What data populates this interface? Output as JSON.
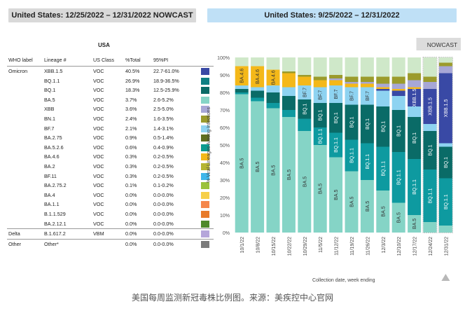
{
  "left_header": "United States: 12/25/2022 – 12/31/2022 NOWCAST",
  "right_header": "United States: 9/25/2022 – 12/31/2022",
  "table": {
    "title": "USA",
    "headers": [
      "WHO label",
      "Lineage #",
      "US Class",
      "%Total",
      "95%PI"
    ],
    "rows": [
      {
        "who": "Omicron",
        "lineage": "XBB.1.5",
        "cls": "VOC",
        "pct": "40.5%",
        "pi": "22.7-61.0%",
        "color": "#3949a5"
      },
      {
        "who": "",
        "lineage": "BQ.1.1",
        "cls": "VOC",
        "pct": "26.9%",
        "pi": "18.9-36.5%",
        "color": "#0e7f83"
      },
      {
        "who": "",
        "lineage": "BQ.1",
        "cls": "VOC",
        "pct": "18.3%",
        "pi": "12.5-25.9%",
        "color": "#0a6b67"
      },
      {
        "who": "",
        "lineage": "BA.5",
        "cls": "VOC",
        "pct": "3.7%",
        "pi": "2.6-5.2%",
        "color": "#85d4c6"
      },
      {
        "who": "",
        "lineage": "XBB",
        "cls": "VOC",
        "pct": "3.6%",
        "pi": "2.5-5.0%",
        "color": "#a7a7d6"
      },
      {
        "who": "",
        "lineage": "BN.1",
        "cls": "VOC",
        "pct": "2.4%",
        "pi": "1.6-3.5%",
        "color": "#9b9b2c"
      },
      {
        "who": "",
        "lineage": "BF.7",
        "cls": "VOC",
        "pct": "2.1%",
        "pi": "1.4-3.1%",
        "color": "#8ed3f1"
      },
      {
        "who": "",
        "lineage": "BA.2.75",
        "cls": "VOC",
        "pct": "0.9%",
        "pi": "0.5-1.4%",
        "color": "#5f6e1f"
      },
      {
        "who": "",
        "lineage": "BA.5.2.6",
        "cls": "VOC",
        "pct": "0.6%",
        "pi": "0.4-0.9%",
        "color": "#0a9a8e"
      },
      {
        "who": "",
        "lineage": "BA.4.6",
        "cls": "VOC",
        "pct": "0.3%",
        "pi": "0.2-0.5%",
        "color": "#f4b819"
      },
      {
        "who": "",
        "lineage": "BA.2",
        "cls": "VOC",
        "pct": "0.3%",
        "pi": "0.2-0.5%",
        "color": "#b5b531"
      },
      {
        "who": "",
        "lineage": "BF.11",
        "cls": "VOC",
        "pct": "0.3%",
        "pi": "0.2-0.5%",
        "color": "#3fb6ea"
      },
      {
        "who": "",
        "lineage": "BA.2.75.2",
        "cls": "VOC",
        "pct": "0.1%",
        "pi": "0.1-0.2%",
        "color": "#9bc23c"
      },
      {
        "who": "",
        "lineage": "BA.4",
        "cls": "VOC",
        "pct": "0.0%",
        "pi": "0.0-0.0%",
        "color": "#f7d04a"
      },
      {
        "who": "",
        "lineage": "BA.1.1",
        "cls": "VOC",
        "pct": "0.0%",
        "pi": "0.0-0.0%",
        "color": "#f5874c"
      },
      {
        "who": "",
        "lineage": "B.1.1.529",
        "cls": "VOC",
        "pct": "0.0%",
        "pi": "0.0-0.0%",
        "color": "#e87b2a"
      },
      {
        "who": "",
        "lineage": "BA.2.12.1",
        "cls": "VOC",
        "pct": "0.0%",
        "pi": "0.0-0.0%",
        "color": "#4f8a2a"
      },
      {
        "who": "Delta",
        "lineage": "B.1.617.2",
        "cls": "VBM",
        "pct": "0.0%",
        "pi": "0.0-0.0%",
        "color": "#b5a6da",
        "sep": true
      },
      {
        "who": "Other",
        "lineage": "Other*",
        "cls": "",
        "pct": "0.0%",
        "pi": "0.0-0.0%",
        "color": "#7b7b7b",
        "sep": true
      }
    ]
  },
  "chart_data": {
    "type": "bar",
    "stacked": true,
    "title": "United States: 9/25/2022 – 12/31/2022",
    "xlabel": "Collection date, week ending",
    "ylabel": "% Viral Lineages Among Infections",
    "ylim": [
      0,
      100
    ],
    "yticks": [
      "0%",
      "10%",
      "20%",
      "30%",
      "40%",
      "50%",
      "60%",
      "70%",
      "80%",
      "90%",
      "100%"
    ],
    "nowcast_label": "NOWCAST",
    "categories": [
      "10/1/22",
      "10/8/22",
      "10/15/22",
      "10/22/22",
      "10/29/22",
      "11/5/22",
      "11/12/22",
      "11/19/22",
      "11/26/22",
      "12/3/22",
      "12/10/22",
      "12/17/22",
      "12/24/22",
      "12/31/22"
    ],
    "nowcast_from_index": 12,
    "series": [
      {
        "name": "BA.5",
        "color": "#85d4c6",
        "values": [
          79,
          75,
          71,
          66,
          58,
          50,
          43,
          35,
          30,
          24,
          17,
          10,
          6,
          4
        ]
      },
      {
        "name": "BQ.1.1",
        "color": "#0e9aa0",
        "values": [
          1,
          2,
          3,
          4,
          7,
          10,
          14,
          18,
          21,
          25,
          29,
          32,
          30,
          27
        ]
      },
      {
        "name": "BQ.1",
        "color": "#0a6b67",
        "values": [
          2,
          4,
          6,
          8,
          11,
          14,
          17,
          20,
          22,
          23,
          24,
          24,
          22,
          18
        ]
      },
      {
        "name": "BF.7",
        "color": "#8ed3f1",
        "values": [
          2,
          2,
          4,
          5,
          8,
          9,
          10,
          10,
          10,
          9,
          8,
          6,
          4,
          2
        ]
      },
      {
        "name": "XBB.1.5",
        "color": "#3949a5",
        "values": [
          0,
          0,
          0,
          0,
          0,
          0,
          0,
          0,
          0,
          1,
          3,
          10,
          20,
          40
        ]
      },
      {
        "name": "BA.4.6",
        "color": "#f4b819",
        "values": [
          11,
          12,
          9,
          8,
          5,
          4,
          3,
          2,
          2,
          1,
          1,
          1,
          0,
          0
        ]
      },
      {
        "name": "XBB",
        "color": "#a7a7d6",
        "values": [
          0,
          0,
          0,
          0,
          0,
          0,
          1,
          1,
          1,
          2,
          3,
          4,
          4,
          4
        ]
      },
      {
        "name": "BN.1",
        "color": "#9b9b2c",
        "values": [
          0,
          0,
          0,
          1,
          1,
          2,
          2,
          3,
          3,
          4,
          4,
          4,
          3,
          2
        ]
      },
      {
        "name": "Other lineages",
        "color": "#cfe8c9",
        "values": [
          5,
          5,
          7,
          8,
          10,
          11,
          10,
          11,
          11,
          11,
          11,
          9,
          11,
          3
        ]
      }
    ],
    "labels": [
      {
        "series": "BA.5",
        "text": "BA.5",
        "from": 0,
        "to": 11
      },
      {
        "series": "BQ.1.1",
        "text": "BQ.1.1",
        "from": 5,
        "to": 13
      },
      {
        "series": "BQ.1",
        "text": "BQ.1",
        "from": 4,
        "to": 13
      },
      {
        "series": "BF.7",
        "text": "BF.7",
        "from": 4,
        "to": 8
      },
      {
        "series": "BA.4.6",
        "text": "BA.4.6",
        "from": 0,
        "to": 2
      },
      {
        "series": "XBB.1.5",
        "text": "XBB.1.5",
        "from": 11,
        "to": 13
      }
    ]
  },
  "caption": "美国每周监测新冠毒株比例图。来源：美疾控中心官网"
}
